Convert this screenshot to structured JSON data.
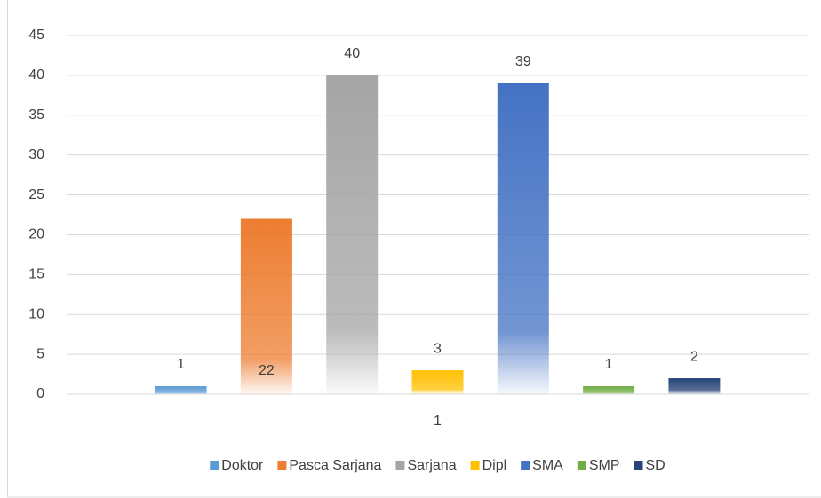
{
  "chart_data": {
    "type": "bar",
    "categories": [
      "1"
    ],
    "series": [
      {
        "name": "Doktor",
        "color": "#5b9bd5",
        "values": [
          1
        ]
      },
      {
        "name": "Pasca Sarjana",
        "color": "#ed7d31",
        "values": [
          22
        ]
      },
      {
        "name": "Sarjana",
        "color": "#a5a5a5",
        "values": [
          40
        ]
      },
      {
        "name": "Dipl",
        "color": "#ffc000",
        "values": [
          3
        ]
      },
      {
        "name": "SMA",
        "color": "#4472c4",
        "values": [
          39
        ]
      },
      {
        "name": "SMP",
        "color": "#70ad47",
        "values": [
          1
        ]
      },
      {
        "name": "SD",
        "color": "#264478",
        "values": [
          2
        ]
      }
    ],
    "ylim": [
      0,
      45
    ],
    "yticks": [
      0,
      5,
      10,
      15,
      20,
      25,
      30,
      35,
      40,
      45
    ],
    "grid": true,
    "legend": "bottom"
  }
}
